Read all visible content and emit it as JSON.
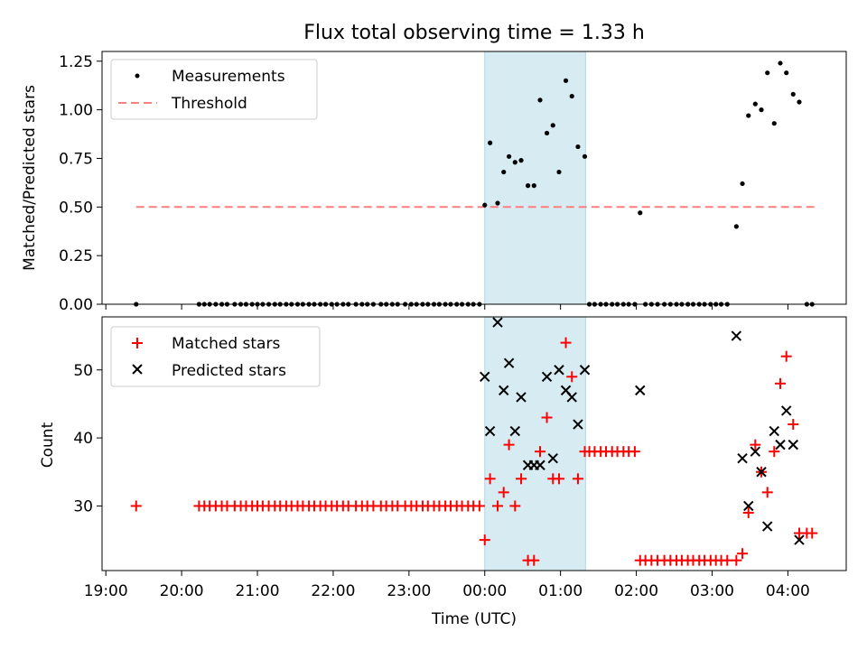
{
  "chart_data": {
    "title": "Flux total observing time = 1.33 h",
    "shaded_window": {
      "start": 0.0,
      "end": 1.33,
      "color": "#add8e6"
    },
    "x_axis": {
      "label": "Time (UTC)",
      "ticks": [
        {
          "value": -5,
          "label": "19:00"
        },
        {
          "value": -4,
          "label": "20:00"
        },
        {
          "value": -3,
          "label": "21:00"
        },
        {
          "value": -2,
          "label": "22:00"
        },
        {
          "value": -1,
          "label": "23:00"
        },
        {
          "value": 0,
          "label": "00:00"
        },
        {
          "value": 1,
          "label": "01:00"
        },
        {
          "value": 2,
          "label": "02:00"
        },
        {
          "value": 3,
          "label": "03:00"
        },
        {
          "value": 4,
          "label": "04:00"
        }
      ],
      "range": [
        -5.05,
        4.77
      ]
    },
    "panels": [
      {
        "id": "ratio",
        "type": "scatter",
        "ylabel": "Matched/Predicted stars",
        "ylim": [
          0,
          1.3
        ],
        "yticks": [
          0,
          0.25,
          0.5,
          0.75,
          1.0,
          1.25
        ],
        "ytick_labels": [
          "0.00",
          "0.25",
          "0.50",
          "0.75",
          "1.00",
          "1.25"
        ],
        "legend": {
          "position": "upper-left",
          "entries": [
            "Measurements",
            "Threshold"
          ]
        },
        "series": [
          {
            "name": "Measurements",
            "marker": "dot",
            "color": "#000000",
            "x": [
              -4.6,
              -3.77,
              -3.7,
              -3.63,
              -3.55,
              -3.47,
              -3.4,
              -3.3,
              -3.22,
              -3.15,
              -3.07,
              -3.0,
              -2.93,
              -2.85,
              -2.77,
              -2.7,
              -2.62,
              -2.55,
              -2.47,
              -2.4,
              -2.32,
              -2.25,
              -2.17,
              -2.1,
              -2.02,
              -1.95,
              -1.87,
              -1.8,
              -1.7,
              -1.62,
              -1.55,
              -1.47,
              -1.37,
              -1.3,
              -1.22,
              -1.15,
              -1.05,
              -0.97,
              -0.9,
              -0.82,
              -0.75,
              -0.67,
              -0.6,
              -0.52,
              -0.45,
              -0.37,
              -0.3,
              -0.22,
              -0.15,
              -0.07,
              0.0,
              0.07,
              0.17,
              0.25,
              0.32,
              0.4,
              0.48,
              0.57,
              0.65,
              0.73,
              0.82,
              0.9,
              0.98,
              1.07,
              1.15,
              1.23,
              1.32,
              1.38,
              1.45,
              1.53,
              1.6,
              1.68,
              1.75,
              1.83,
              1.9,
              1.98,
              2.05,
              2.12,
              2.2,
              2.28,
              2.37,
              2.45,
              2.53,
              2.6,
              2.68,
              2.75,
              2.83,
              2.9,
              2.98,
              3.05,
              3.12,
              3.2,
              3.32,
              3.4,
              3.48,
              3.57,
              3.65,
              3.73,
              3.82,
              3.9,
              3.98,
              4.07,
              4.15,
              4.25,
              4.32
            ],
            "y": [
              0,
              0,
              0,
              0,
              0,
              0,
              0,
              0,
              0,
              0,
              0,
              0,
              0,
              0,
              0,
              0,
              0,
              0,
              0,
              0,
              0,
              0,
              0,
              0,
              0,
              0,
              0,
              0,
              0,
              0,
              0,
              0,
              0,
              0,
              0,
              0,
              0,
              0,
              0,
              0,
              0,
              0,
              0,
              0,
              0,
              0,
              0,
              0,
              0,
              0,
              0.51,
              0.83,
              0.52,
              0.68,
              0.76,
              0.73,
              0.74,
              0.61,
              0.61,
              1.05,
              0.88,
              0.92,
              0.68,
              1.15,
              1.07,
              0.81,
              0.76,
              0,
              0,
              0,
              0,
              0,
              0,
              0,
              0,
              0,
              0.47,
              0,
              0,
              0,
              0,
              0,
              0,
              0,
              0,
              0,
              0,
              0,
              0,
              0,
              0,
              0,
              0.4,
              0.62,
              0.97,
              1.03,
              1.0,
              1.19,
              0.93,
              1.24,
              1.19,
              1.08,
              1.04,
              0,
              0
            ]
          },
          {
            "name": "Threshold",
            "marker": "dashed-line",
            "color": "#ff7f7f",
            "x": [
              -4.6,
              4.35
            ],
            "y": [
              0.5,
              0.5
            ]
          }
        ]
      },
      {
        "id": "counts",
        "type": "scatter",
        "ylabel": "Count",
        "ylim": [
          20.5,
          57.8
        ],
        "yticks": [
          30,
          40,
          50
        ],
        "ytick_labels": [
          "30",
          "40",
          "50"
        ],
        "legend": {
          "position": "upper-left",
          "entries": [
            "Matched stars",
            "Predicted stars"
          ]
        },
        "series": [
          {
            "name": "Matched stars",
            "marker": "plus",
            "color": "#ff0000",
            "x": [
              -4.6,
              -3.77,
              -3.7,
              -3.63,
              -3.55,
              -3.47,
              -3.4,
              -3.3,
              -3.22,
              -3.15,
              -3.07,
              -3.0,
              -2.93,
              -2.85,
              -2.77,
              -2.7,
              -2.62,
              -2.55,
              -2.47,
              -2.4,
              -2.32,
              -2.25,
              -2.17,
              -2.1,
              -2.02,
              -1.95,
              -1.87,
              -1.8,
              -1.7,
              -1.62,
              -1.55,
              -1.47,
              -1.37,
              -1.3,
              -1.22,
              -1.15,
              -1.05,
              -0.97,
              -0.9,
              -0.82,
              -0.75,
              -0.67,
              -0.6,
              -0.52,
              -0.45,
              -0.37,
              -0.3,
              -0.22,
              -0.15,
              -0.07,
              0.0,
              0.07,
              0.17,
              0.25,
              0.32,
              0.4,
              0.48,
              0.57,
              0.65,
              0.73,
              0.82,
              0.9,
              0.98,
              1.07,
              1.15,
              1.23,
              1.32,
              1.38,
              1.45,
              1.53,
              1.6,
              1.68,
              1.75,
              1.83,
              1.9,
              1.98,
              2.05,
              2.12,
              2.2,
              2.28,
              2.37,
              2.45,
              2.53,
              2.6,
              2.68,
              2.75,
              2.83,
              2.9,
              2.98,
              3.05,
              3.12,
              3.2,
              3.32,
              3.4,
              3.48,
              3.57,
              3.65,
              3.73,
              3.82,
              3.9,
              3.98,
              4.07,
              4.15,
              4.25,
              4.32
            ],
            "y": [
              30,
              30,
              30,
              30,
              30,
              30,
              30,
              30,
              30,
              30,
              30,
              30,
              30,
              30,
              30,
              30,
              30,
              30,
              30,
              30,
              30,
              30,
              30,
              30,
              30,
              30,
              30,
              30,
              30,
              30,
              30,
              30,
              30,
              30,
              30,
              30,
              30,
              30,
              30,
              30,
              30,
              30,
              30,
              30,
              30,
              30,
              30,
              30,
              30,
              30,
              25,
              34,
              30,
              32,
              39,
              30,
              34,
              22,
              22,
              38,
              43,
              34,
              34,
              54,
              49,
              34,
              38,
              38,
              38,
              38,
              38,
              38,
              38,
              38,
              38,
              38,
              22,
              22,
              22,
              22,
              22,
              22,
              22,
              22,
              22,
              22,
              22,
              22,
              22,
              22,
              22,
              22,
              22,
              23,
              29,
              39,
              35,
              32,
              38,
              48,
              52,
              42,
              26,
              26,
              26
            ]
          },
          {
            "name": "Predicted stars",
            "marker": "x",
            "color": "#000000",
            "x": [
              0.0,
              0.07,
              0.17,
              0.25,
              0.32,
              0.4,
              0.48,
              0.57,
              0.65,
              0.73,
              0.82,
              0.9,
              0.98,
              1.07,
              1.15,
              1.23,
              1.32,
              2.05,
              3.32,
              3.4,
              3.48,
              3.57,
              3.65,
              3.73,
              3.82,
              3.9,
              3.98,
              4.07,
              4.15
            ],
            "y": [
              49,
              41,
              57,
              47,
              51,
              41,
              46,
              36,
              36,
              36,
              49,
              37,
              50,
              47,
              46,
              42,
              50,
              47,
              55,
              37,
              30,
              38,
              35,
              27,
              41,
              39,
              44,
              39,
              25
            ]
          }
        ]
      }
    ]
  }
}
